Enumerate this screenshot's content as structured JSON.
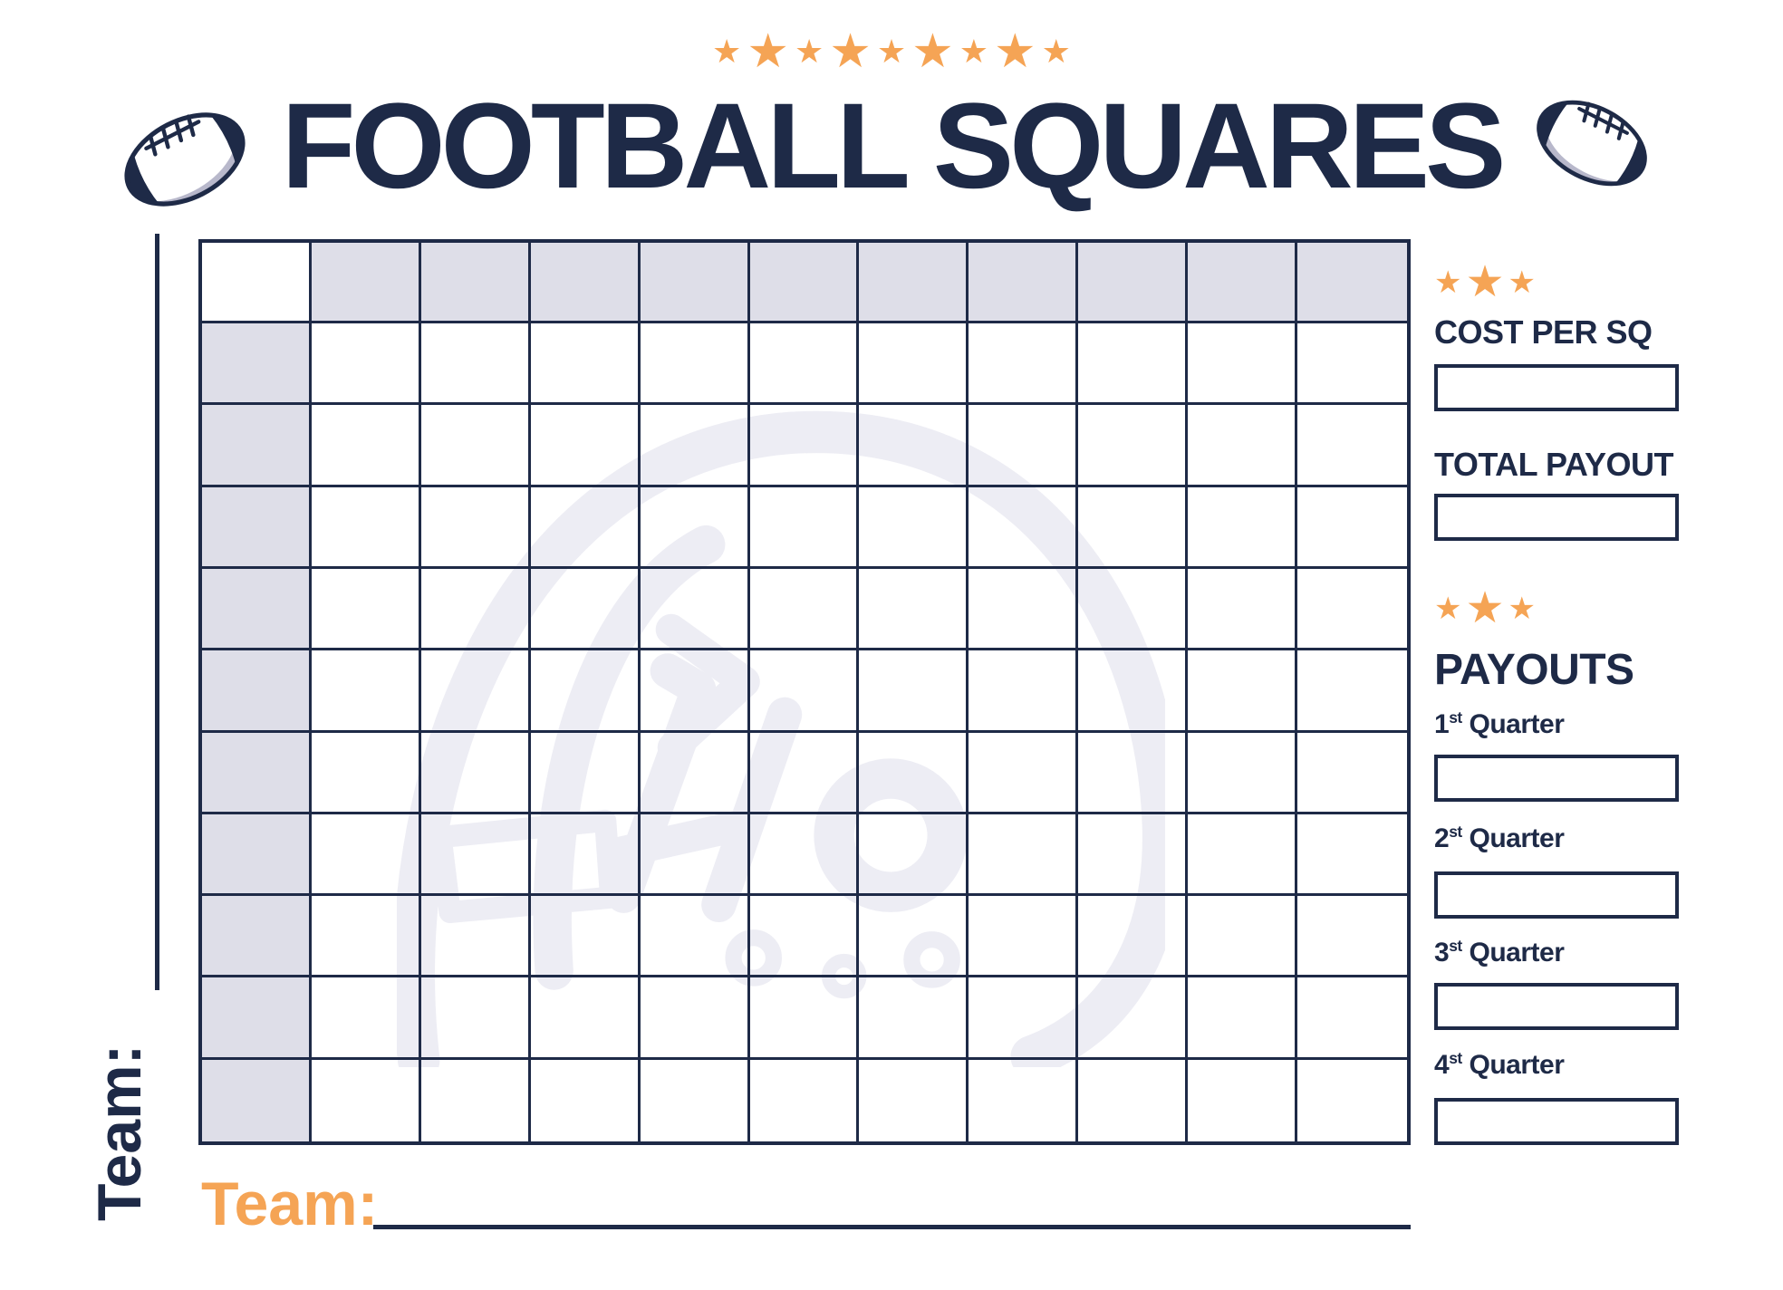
{
  "colors": {
    "navy": "#1e2a47",
    "orange": "#f5a455",
    "shade": "#dedee8",
    "wm": "#ededf4",
    "ballshadow": "#b8b8cb"
  },
  "header": {
    "title": "FOOTBALL SQUARES",
    "stars_count": 9
  },
  "grid": {
    "rows": 11,
    "cols": 11
  },
  "left_axis": {
    "team_label": "Team:"
  },
  "bottom_axis": {
    "team_label": "Team:"
  },
  "sidebar": {
    "stars_top_count": 3,
    "stars_mid_count": 3,
    "cost_label": "COST PER SQ",
    "total_label": "TOTAL PAYOUT",
    "payouts_label": "PAYOUTS",
    "quarters": [
      {
        "num": "1",
        "sup": "st",
        "word": "Quarter"
      },
      {
        "num": "2",
        "sup": "st",
        "word": "Quarter"
      },
      {
        "num": "3",
        "sup": "st",
        "word": "Quarter"
      },
      {
        "num": "4",
        "sup": "st",
        "word": "Quarter"
      }
    ]
  }
}
